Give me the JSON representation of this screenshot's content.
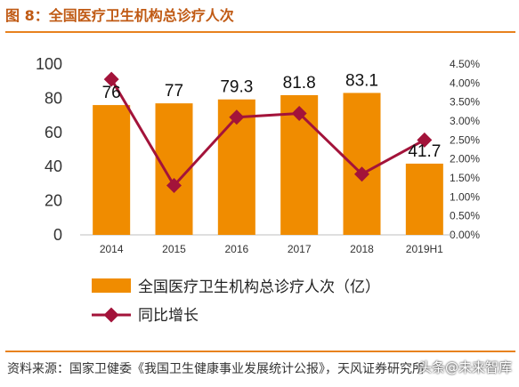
{
  "header": {
    "title": "图 8：全国医疗卫生机构总诊疗人次"
  },
  "footer": {
    "source": "资料来源：国家卫健委《我国卫生健康事业发展统计公报》，天风证券研究所",
    "watermark": "头条@未来智库"
  },
  "chart_data": {
    "type": "bar",
    "categories": [
      "2014",
      "2015",
      "2016",
      "2017",
      "2018",
      "2019H1"
    ],
    "series": [
      {
        "name": "全国医疗卫生机构总诊疗人次（亿）",
        "type": "bar",
        "axis": "left",
        "values": [
          76,
          77,
          79.3,
          81.8,
          83.1,
          41.7
        ],
        "color": "#f08c00"
      },
      {
        "name": "同比增长",
        "type": "line",
        "axis": "right",
        "values": [
          4.1,
          1.3,
          3.1,
          3.2,
          1.6,
          2.5
        ],
        "color": "#a3133a"
      }
    ],
    "data_labels": [
      "76",
      "77",
      "79.3",
      "81.8",
      "83.1",
      "41.7"
    ],
    "left_axis": {
      "ylim": [
        0,
        100
      ],
      "ticks": [
        "0",
        "20",
        "40",
        "60",
        "80",
        "100"
      ]
    },
    "right_axis": {
      "ylim": [
        0,
        4.5
      ],
      "ticks": [
        "0.00%",
        "0.50%",
        "1.00%",
        "1.50%",
        "2.00%",
        "2.50%",
        "3.00%",
        "3.50%",
        "4.00%",
        "4.50%"
      ]
    },
    "legend_placement": "bottom",
    "grid": false
  }
}
